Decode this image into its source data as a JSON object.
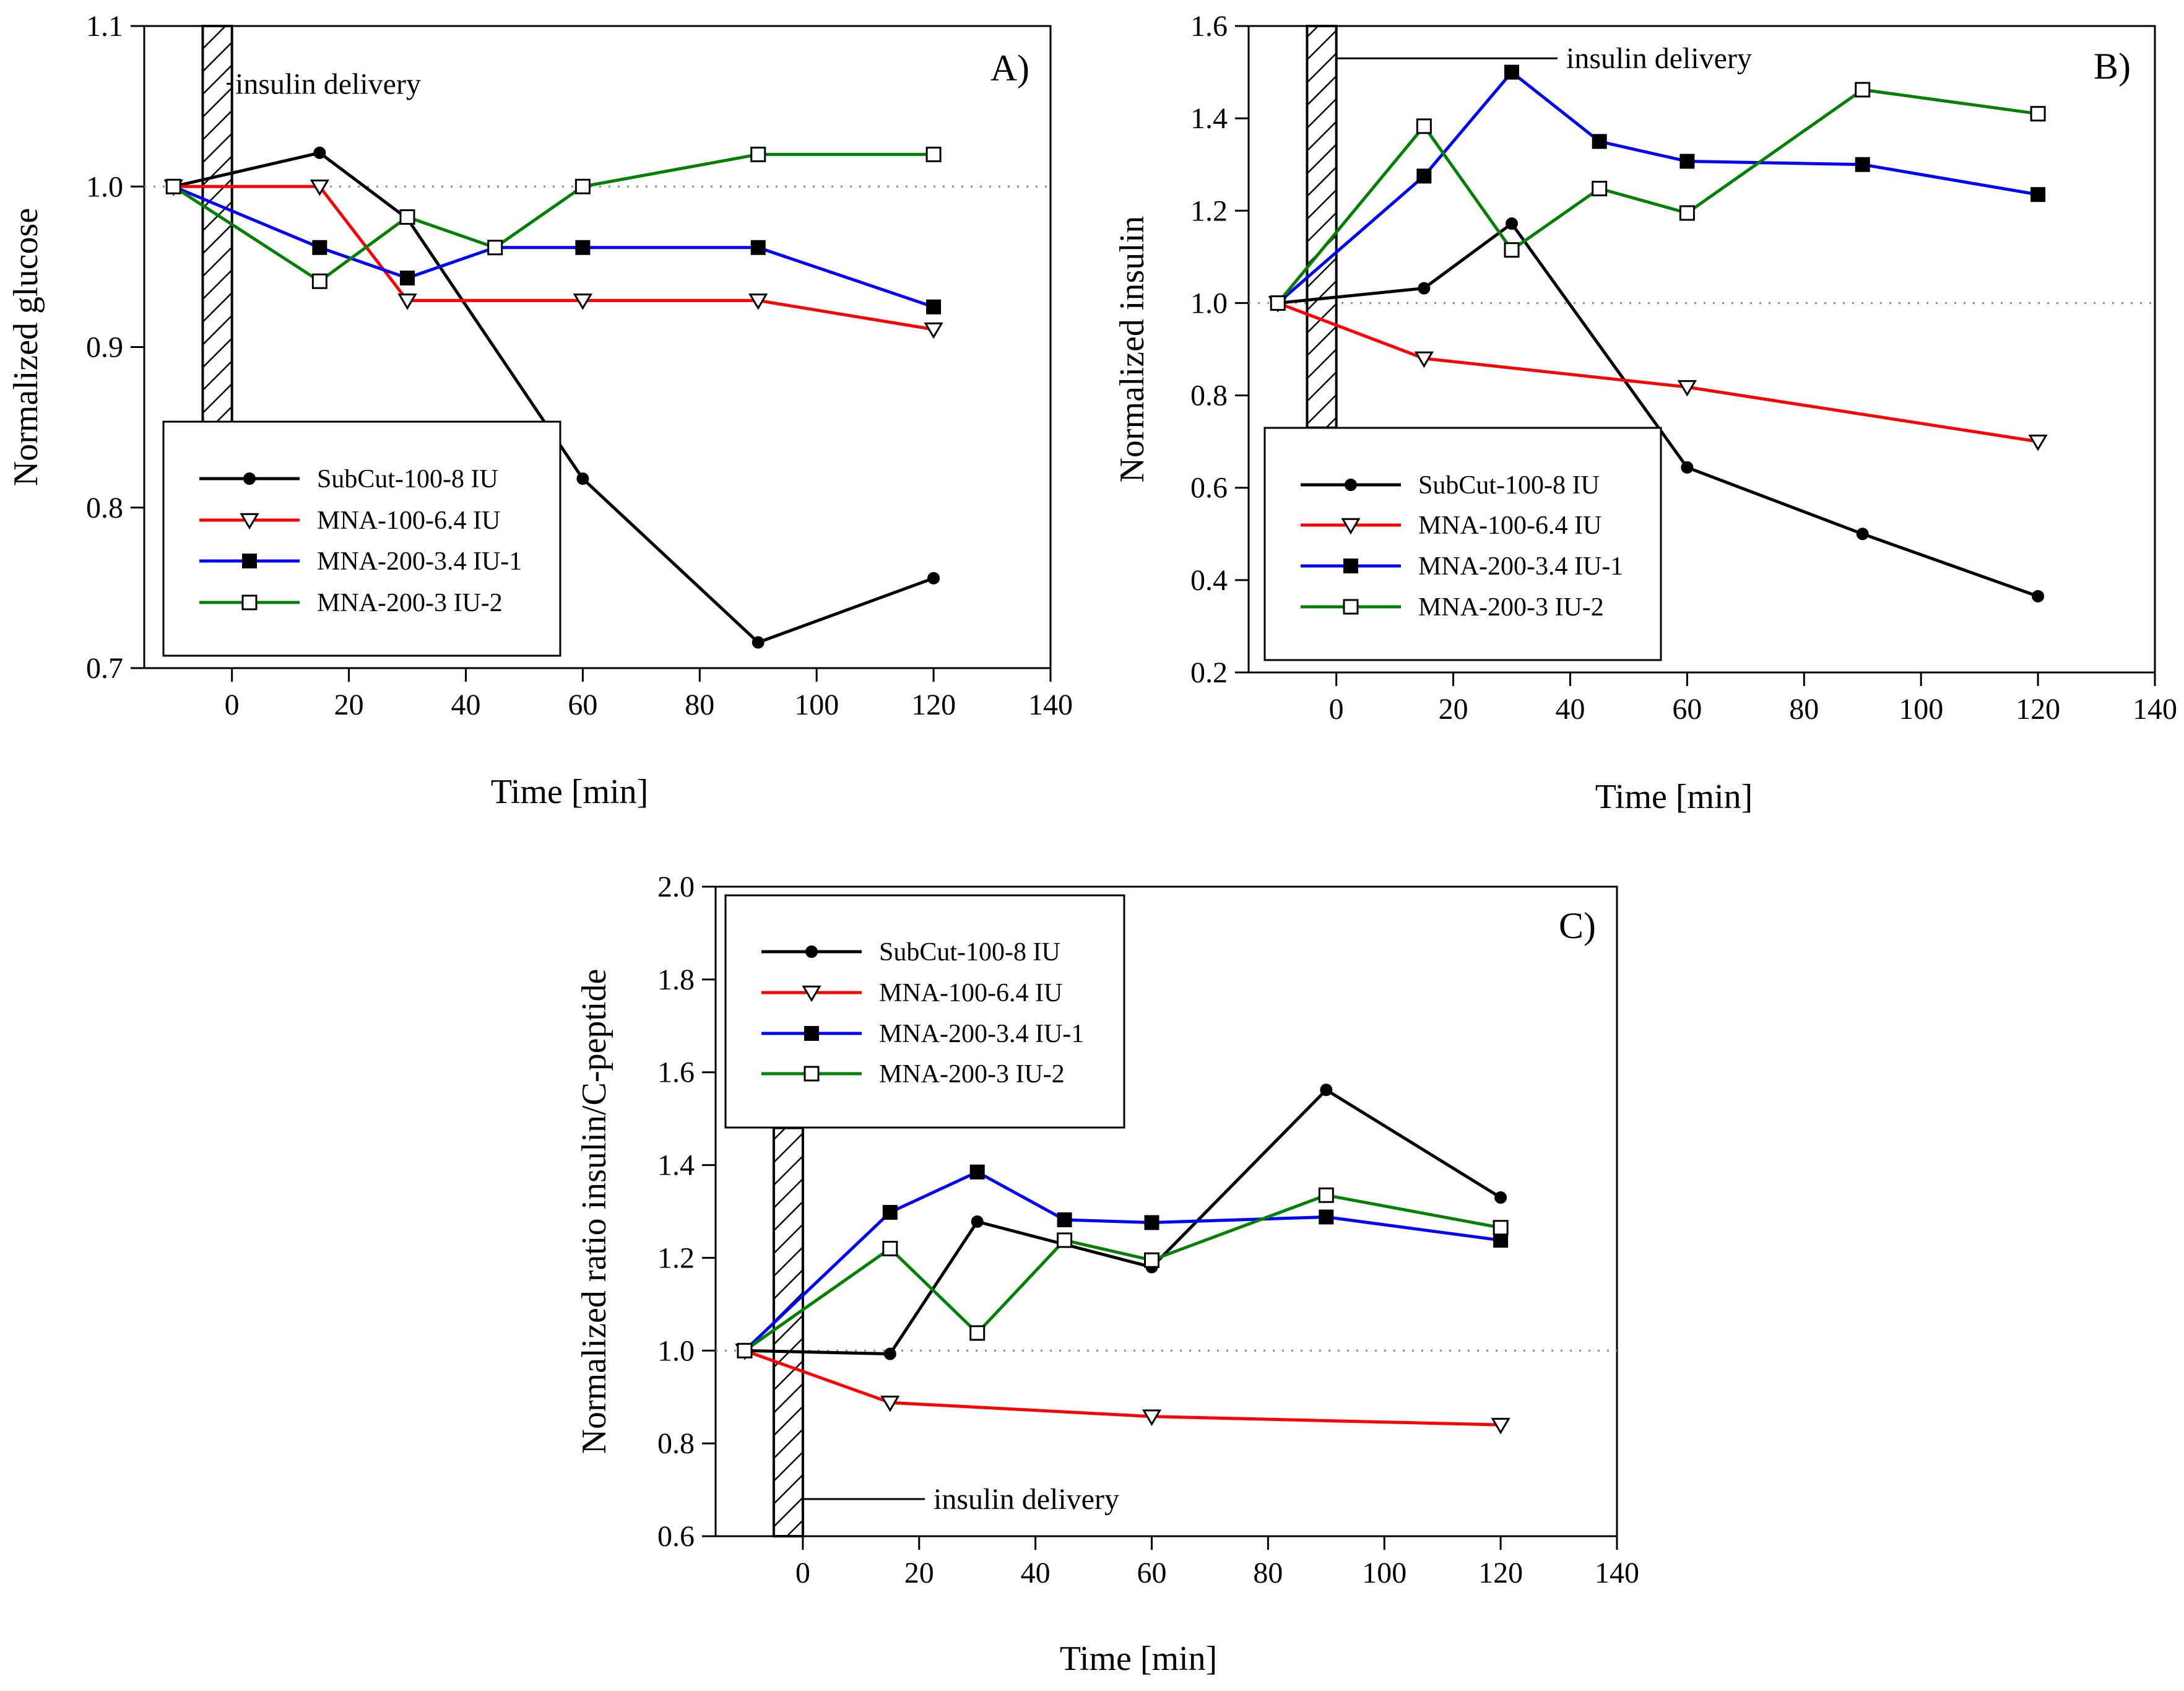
{
  "chart_data": [
    {
      "type": "line",
      "panel_label": "A)",
      "xlabel": "Time [min]",
      "ylabel": "Normalized glucose",
      "xlim": [
        -15,
        140
      ],
      "ylim": [
        0.7,
        1.1
      ],
      "xticks": [
        0,
        20,
        40,
        60,
        80,
        100,
        120,
        140
      ],
      "xtick_labels": [
        "0",
        "20",
        "40",
        "60",
        "80",
        "100",
        "120",
        "140"
      ],
      "yticks": [
        0.7,
        0.8,
        0.9,
        1.0,
        1.1
      ],
      "ytick_labels": [
        "0.7",
        "0.8",
        "0.9",
        "1.0",
        "1.1"
      ],
      "reference_line": 1.0,
      "delivery_bar": {
        "x_start": -5,
        "x_end": 0,
        "y_top": 1.1,
        "y_bottom": 0.853
      },
      "annotation": {
        "text": "insulin delivery",
        "y": 1.064
      },
      "legend_position": "bottom-left",
      "series": [
        {
          "name": "SubCut-100-8 IU",
          "color": "#000000",
          "marker": "circle",
          "x": [
            -10,
            15,
            30,
            60,
            90,
            120
          ],
          "values": [
            1.0,
            1.021,
            0.98,
            0.818,
            0.716,
            0.756
          ]
        },
        {
          "name": "MNA-100-6.4 IU",
          "color": "#ff0000",
          "marker": "triangle-down-open",
          "x": [
            -10,
            15,
            30,
            60,
            90,
            120
          ],
          "values": [
            1.0,
            1.0,
            0.929,
            0.929,
            0.929,
            0.911
          ]
        },
        {
          "name": "MNA-200-3.4 IU-1",
          "color": "#0000ff",
          "marker": "square",
          "x": [
            -10,
            15,
            30,
            45,
            60,
            90,
            120
          ],
          "values": [
            1.0,
            0.962,
            0.943,
            0.962,
            0.962,
            0.962,
            0.925
          ]
        },
        {
          "name": "MNA-200-3 IU-2",
          "color": "#008000",
          "marker": "square-open",
          "x": [
            -10,
            15,
            30,
            45,
            60,
            90,
            120
          ],
          "values": [
            1.0,
            0.941,
            0.981,
            0.962,
            1.0,
            1.02,
            1.02
          ]
        }
      ]
    },
    {
      "type": "line",
      "panel_label": "B)",
      "xlabel": "Time [min]",
      "ylabel": "Normalized insulin",
      "xlim": [
        -15,
        140
      ],
      "ylim": [
        0.2,
        1.6
      ],
      "xticks": [
        0,
        20,
        40,
        60,
        80,
        100,
        120,
        140
      ],
      "xtick_labels": [
        "0",
        "20",
        "40",
        "60",
        "80",
        "100",
        "120",
        "140"
      ],
      "yticks": [
        0.2,
        0.4,
        0.6,
        0.8,
        1.0,
        1.2,
        1.4,
        1.6
      ],
      "ytick_labels": [
        "0.2",
        "0.4",
        "0.6",
        "0.8",
        "1.0",
        "1.2",
        "1.4",
        "1.6"
      ],
      "reference_line": 1.0,
      "delivery_bar": {
        "x_start": -5,
        "x_end": 0,
        "y_top": 1.6,
        "y_bottom": 0.73
      },
      "annotation": {
        "text": "insulin delivery",
        "y": 1.53
      },
      "legend_position": "bottom-left",
      "series": [
        {
          "name": "SubCut-100-8 IU",
          "color": "#000000",
          "marker": "circle",
          "x": [
            -10,
            15,
            30,
            60,
            90,
            120
          ],
          "values": [
            1.0,
            1.032,
            1.172,
            0.644,
            0.5,
            0.365
          ]
        },
        {
          "name": "MNA-100-6.4 IU",
          "color": "#ff0000",
          "marker": "triangle-down-open",
          "x": [
            -10,
            15,
            60,
            120
          ],
          "values": [
            1.0,
            0.88,
            0.818,
            0.7
          ]
        },
        {
          "name": "MNA-200-3.4 IU-1",
          "color": "#0000ff",
          "marker": "square",
          "x": [
            -10,
            15,
            30,
            45,
            60,
            90,
            120
          ],
          "values": [
            1.0,
            1.275,
            1.5,
            1.35,
            1.307,
            1.3,
            1.235
          ]
        },
        {
          "name": "MNA-200-3 IU-2",
          "color": "#008000",
          "marker": "square-open",
          "x": [
            -10,
            15,
            30,
            45,
            60,
            90,
            120
          ],
          "values": [
            1.0,
            1.383,
            1.115,
            1.248,
            1.195,
            1.462,
            1.41
          ]
        }
      ]
    },
    {
      "type": "line",
      "panel_label": "C)",
      "xlabel": "Time [min]",
      "ylabel": "Normalized ratio insulin/C-peptide",
      "xlim": [
        -15,
        140
      ],
      "ylim": [
        0.6,
        2.0
      ],
      "xticks": [
        0,
        20,
        40,
        60,
        80,
        100,
        120,
        140
      ],
      "xtick_labels": [
        "0",
        "20",
        "40",
        "60",
        "80",
        "100",
        "120",
        "140"
      ],
      "yticks": [
        0.6,
        0.8,
        1.0,
        1.2,
        1.4,
        1.6,
        1.8,
        2.0
      ],
      "ytick_labels": [
        "0.6",
        "0.8",
        "1.0",
        "1.2",
        "1.4",
        "1.6",
        "1.8",
        "2.0"
      ],
      "reference_line": 1.0,
      "delivery_bar": {
        "x_start": -5,
        "x_end": 0,
        "y_top": 1.48,
        "y_bottom": 0.6
      },
      "annotation": {
        "text": "insulin delivery",
        "y": 0.68
      },
      "legend_position": "top-left",
      "series": [
        {
          "name": "SubCut-100-8 IU",
          "color": "#000000",
          "marker": "circle",
          "x": [
            -10,
            15,
            30,
            60,
            90,
            120
          ],
          "values": [
            1.0,
            0.993,
            1.278,
            1.18,
            1.562,
            1.33
          ]
        },
        {
          "name": "MNA-100-6.4  IU",
          "color": "#ff0000",
          "marker": "triangle-down-open",
          "x": [
            -10,
            15,
            60,
            120
          ],
          "values": [
            1.0,
            0.888,
            0.858,
            0.84
          ]
        },
        {
          "name": "MNA-200-3.4 IU-1",
          "color": "#0000ff",
          "marker": "square",
          "x": [
            -10,
            15,
            30,
            45,
            60,
            90,
            120
          ],
          "values": [
            1.0,
            1.298,
            1.385,
            1.282,
            1.276,
            1.288,
            1.238
          ]
        },
        {
          "name": "MNA-200-3 IU-2",
          "color": "#008000",
          "marker": "square-open",
          "x": [
            -10,
            15,
            30,
            45,
            60,
            90,
            120
          ],
          "values": [
            1.0,
            1.22,
            1.038,
            1.238,
            1.195,
            1.335,
            1.265
          ]
        }
      ]
    }
  ]
}
